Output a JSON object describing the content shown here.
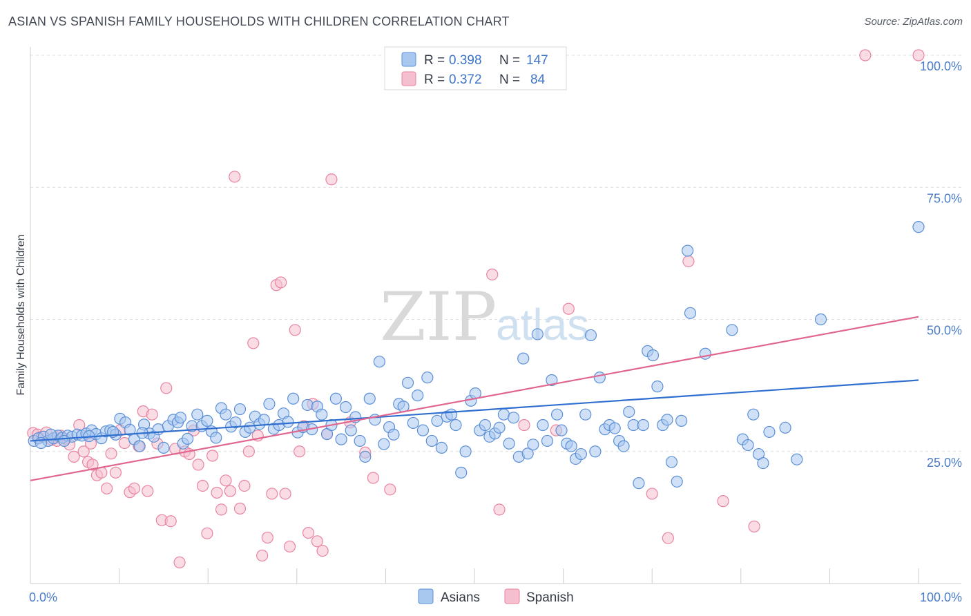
{
  "title": "ASIAN VS SPANISH FAMILY HOUSEHOLDS WITH CHILDREN CORRELATION CHART",
  "source": "Source: ZipAtlas.com",
  "watermark": {
    "zip": "ZIP",
    "atlas": "atlas"
  },
  "legend": {
    "r_label": "R =",
    "n_label": "N =",
    "entries": [
      {
        "r": "0.398",
        "n": "147"
      },
      {
        "r": "0.372",
        "n": "84"
      }
    ]
  },
  "colors": {
    "asians_fill": "#a9c8f0",
    "asians_stroke": "#5b8fd6",
    "asians_line": "#2f6fcf",
    "spanish_fill": "#f6bfcf",
    "spanish_stroke": "#e8849f",
    "spanish_line": "#e06690",
    "tick_label": "#4a7cc7",
    "grid": "#dddddd"
  },
  "chart_data": {
    "type": "scatter",
    "title": "ASIAN VS SPANISH FAMILY HOUSEHOLDS WITH CHILDREN CORRELATION CHART",
    "xlabel": "",
    "ylabel": "Family Households with Children",
    "xlim": [
      0,
      100
    ],
    "ylim": [
      0,
      100
    ],
    "x_tick_labels": [
      "0.0%",
      "100.0%"
    ],
    "y_ticks": [
      25,
      50,
      75,
      100
    ],
    "y_tick_labels": [
      "25.0%",
      "50.0%",
      "75.0%",
      "100.0%"
    ],
    "grid": true,
    "legend_placement": "top-center",
    "series": [
      {
        "name": "Asians",
        "r": 0.398,
        "n": 147,
        "trend": {
          "x": [
            0,
            100
          ],
          "y": [
            27.0,
            38.5
          ]
        },
        "points": [
          [
            0.4,
            27.0
          ],
          [
            0.9,
            27.5
          ],
          [
            1.5,
            27.8
          ],
          [
            2.0,
            27.0
          ],
          [
            2.6,
            27.5
          ],
          [
            3.1,
            28.0
          ],
          [
            3.6,
            27.6
          ],
          [
            4.2,
            28.0
          ],
          [
            4.7,
            27.8
          ],
          [
            5.3,
            28.2
          ],
          [
            5.8,
            28.0
          ],
          [
            6.3,
            28.4
          ],
          [
            6.9,
            29.0
          ],
          [
            7.4,
            28.3
          ],
          [
            8.0,
            27.5
          ],
          [
            8.5,
            28.8
          ],
          [
            9.0,
            29.0
          ],
          [
            9.6,
            28.2
          ],
          [
            10.1,
            31.2
          ],
          [
            10.7,
            30.5
          ],
          [
            11.2,
            29.1
          ],
          [
            11.7,
            27.3
          ],
          [
            12.3,
            26.0
          ],
          [
            12.8,
            30.1
          ],
          [
            13.4,
            28.4
          ],
          [
            13.9,
            27.8
          ],
          [
            14.4,
            29.2
          ],
          [
            15.0,
            25.7
          ],
          [
            15.5,
            29.8
          ],
          [
            16.1,
            31.0
          ],
          [
            16.6,
            30.5
          ],
          [
            17.2,
            26.5
          ],
          [
            17.7,
            27.4
          ],
          [
            18.2,
            29.8
          ],
          [
            18.8,
            32.0
          ],
          [
            19.3,
            29.8
          ],
          [
            19.9,
            30.8
          ],
          [
            20.4,
            28.8
          ],
          [
            20.9,
            27.6
          ],
          [
            21.5,
            33.2
          ],
          [
            22.0,
            32.0
          ],
          [
            22.6,
            29.7
          ],
          [
            23.1,
            30.5
          ],
          [
            23.6,
            33.0
          ],
          [
            24.2,
            28.7
          ],
          [
            24.7,
            29.5
          ],
          [
            25.3,
            31.6
          ],
          [
            25.8,
            30.2
          ],
          [
            26.3,
            31.0
          ],
          [
            26.9,
            34.0
          ],
          [
            27.4,
            29.3
          ],
          [
            28.0,
            30.0
          ],
          [
            28.5,
            32.2
          ],
          [
            29.0,
            30.6
          ],
          [
            29.6,
            35.0
          ],
          [
            30.1,
            28.6
          ],
          [
            30.7,
            29.6
          ],
          [
            31.2,
            33.8
          ],
          [
            31.7,
            29.2
          ],
          [
            32.3,
            33.5
          ],
          [
            32.8,
            32.0
          ],
          [
            33.4,
            28.3
          ],
          [
            33.9,
            30.0
          ],
          [
            34.4,
            35.0
          ],
          [
            35.0,
            27.3
          ],
          [
            35.5,
            33.4
          ],
          [
            36.1,
            29.0
          ],
          [
            36.6,
            31.5
          ],
          [
            37.1,
            27.0
          ],
          [
            37.7,
            24.0
          ],
          [
            38.2,
            35.0
          ],
          [
            38.8,
            31.0
          ],
          [
            39.3,
            42.0
          ],
          [
            39.8,
            26.4
          ],
          [
            40.4,
            29.6
          ],
          [
            40.9,
            28.2
          ],
          [
            41.5,
            34.0
          ],
          [
            42.0,
            33.5
          ],
          [
            42.5,
            38.0
          ],
          [
            43.1,
            30.4
          ],
          [
            43.6,
            35.6
          ],
          [
            44.2,
            29.0
          ],
          [
            44.7,
            39.0
          ],
          [
            45.2,
            27.0
          ],
          [
            45.8,
            30.8
          ],
          [
            46.3,
            25.7
          ],
          [
            46.9,
            31.6
          ],
          [
            47.4,
            32.0
          ],
          [
            47.9,
            30.0
          ],
          [
            48.5,
            21.0
          ],
          [
            49.0,
            25.0
          ],
          [
            49.6,
            34.6
          ],
          [
            50.1,
            36.0
          ],
          [
            50.6,
            29.0
          ],
          [
            51.2,
            30.0
          ],
          [
            51.7,
            27.8
          ],
          [
            52.3,
            28.4
          ],
          [
            52.8,
            29.5
          ],
          [
            53.3,
            32.0
          ],
          [
            53.9,
            26.5
          ],
          [
            54.4,
            31.4
          ],
          [
            55.0,
            24.0
          ],
          [
            55.5,
            42.6
          ],
          [
            56.0,
            24.6
          ],
          [
            56.6,
            26.3
          ],
          [
            57.1,
            47.2
          ],
          [
            57.7,
            30.0
          ],
          [
            58.2,
            27.0
          ],
          [
            58.7,
            38.5
          ],
          [
            59.3,
            32.0
          ],
          [
            59.8,
            29.0
          ],
          [
            60.4,
            26.5
          ],
          [
            60.9,
            26.0
          ],
          [
            61.4,
            23.6
          ],
          [
            62.0,
            24.5
          ],
          [
            62.5,
            32.0
          ],
          [
            63.1,
            47.0
          ],
          [
            63.6,
            25.0
          ],
          [
            64.1,
            39.0
          ],
          [
            64.7,
            29.2
          ],
          [
            65.2,
            30.0
          ],
          [
            65.8,
            29.4
          ],
          [
            66.3,
            27.0
          ],
          [
            66.8,
            26.0
          ],
          [
            67.4,
            32.5
          ],
          [
            67.9,
            30.0
          ],
          [
            68.5,
            19.0
          ],
          [
            69.0,
            30.0
          ],
          [
            69.5,
            44.0
          ],
          [
            70.1,
            43.2
          ],
          [
            70.6,
            37.3
          ],
          [
            71.2,
            30.0
          ],
          [
            71.7,
            31.0
          ],
          [
            72.2,
            23.0
          ],
          [
            72.8,
            19.3
          ],
          [
            73.3,
            30.8
          ],
          [
            74.0,
            63.0
          ],
          [
            74.3,
            51.2
          ],
          [
            76.0,
            43.5
          ],
          [
            79.0,
            48.0
          ],
          [
            80.2,
            27.3
          ],
          [
            80.8,
            26.2
          ],
          [
            81.4,
            32.0
          ],
          [
            82.0,
            24.5
          ],
          [
            82.5,
            22.8
          ],
          [
            83.2,
            28.7
          ],
          [
            85.0,
            29.5
          ],
          [
            86.3,
            23.5
          ],
          [
            89.0,
            50.0
          ],
          [
            100.0,
            67.5
          ],
          [
            1.2,
            26.6
          ],
          [
            2.3,
            28.2
          ],
          [
            3.8,
            27.0
          ],
          [
            6.6,
            27.9
          ],
          [
            9.3,
            28.7
          ],
          [
            12.6,
            28.5
          ],
          [
            16.9,
            31.4
          ]
        ]
      },
      {
        "name": "Spanish",
        "r": 0.372,
        "n": 84,
        "trend": {
          "x": [
            0,
            100
          ],
          "y": [
            19.5,
            50.5
          ]
        },
        "points": [
          [
            0.3,
            28.5
          ],
          [
            0.8,
            28.2
          ],
          [
            1.3,
            27.8
          ],
          [
            1.8,
            28.6
          ],
          [
            2.4,
            27.2
          ],
          [
            2.9,
            27.6
          ],
          [
            3.4,
            28.0
          ],
          [
            3.9,
            27.4
          ],
          [
            4.4,
            26.3
          ],
          [
            4.9,
            24.0
          ],
          [
            5.5,
            30.0
          ],
          [
            6.0,
            25.0
          ],
          [
            6.5,
            23.0
          ],
          [
            7.0,
            22.5
          ],
          [
            7.5,
            20.5
          ],
          [
            8.0,
            21.0
          ],
          [
            8.6,
            18.0
          ],
          [
            9.1,
            24.6
          ],
          [
            9.6,
            21.0
          ],
          [
            10.1,
            29.0
          ],
          [
            10.6,
            26.6
          ],
          [
            11.2,
            17.3
          ],
          [
            11.7,
            18.0
          ],
          [
            12.2,
            26.0
          ],
          [
            12.7,
            32.6
          ],
          [
            13.2,
            17.5
          ],
          [
            13.7,
            32.0
          ],
          [
            14.3,
            26.5
          ],
          [
            14.8,
            12.0
          ],
          [
            15.3,
            37.0
          ],
          [
            15.8,
            11.8
          ],
          [
            16.3,
            25.5
          ],
          [
            16.8,
            4.0
          ],
          [
            17.4,
            25.0
          ],
          [
            17.9,
            24.5
          ],
          [
            18.4,
            29.0
          ],
          [
            18.9,
            22.5
          ],
          [
            19.4,
            18.5
          ],
          [
            19.9,
            9.5
          ],
          [
            20.5,
            24.2
          ],
          [
            21.0,
            17.2
          ],
          [
            21.5,
            14.0
          ],
          [
            22.0,
            19.5
          ],
          [
            22.5,
            17.5
          ],
          [
            23.0,
            77.0
          ],
          [
            23.6,
            14.2
          ],
          [
            24.1,
            18.5
          ],
          [
            24.6,
            25.0
          ],
          [
            25.1,
            45.5
          ],
          [
            25.6,
            28.0
          ],
          [
            26.1,
            5.3
          ],
          [
            26.7,
            8.7
          ],
          [
            27.2,
            17.0
          ],
          [
            27.7,
            56.5
          ],
          [
            28.2,
            57.0
          ],
          [
            28.7,
            17.0
          ],
          [
            29.2,
            7.0
          ],
          [
            29.8,
            48.0
          ],
          [
            30.3,
            25.0
          ],
          [
            30.8,
            29.8
          ],
          [
            31.3,
            9.6
          ],
          [
            31.8,
            34.0
          ],
          [
            32.3,
            8.0
          ],
          [
            32.9,
            6.2
          ],
          [
            33.4,
            28.3
          ],
          [
            33.9,
            76.5
          ],
          [
            36.0,
            30.5
          ],
          [
            37.7,
            24.8
          ],
          [
            38.6,
            20.0
          ],
          [
            40.5,
            17.8
          ],
          [
            52.0,
            58.5
          ],
          [
            52.8,
            14.0
          ],
          [
            55.6,
            30.0
          ],
          [
            59.2,
            29.0
          ],
          [
            60.6,
            52.0
          ],
          [
            70.0,
            17.0
          ],
          [
            71.8,
            8.6
          ],
          [
            78.0,
            15.6
          ],
          [
            81.5,
            10.8
          ],
          [
            74.1,
            61.0
          ],
          [
            94.0,
            100.0
          ],
          [
            100.0,
            100.0
          ],
          [
            3.0,
            27.0
          ],
          [
            6.8,
            26.5
          ]
        ]
      }
    ]
  },
  "bottom_legend": [
    "Asians",
    "Spanish"
  ]
}
